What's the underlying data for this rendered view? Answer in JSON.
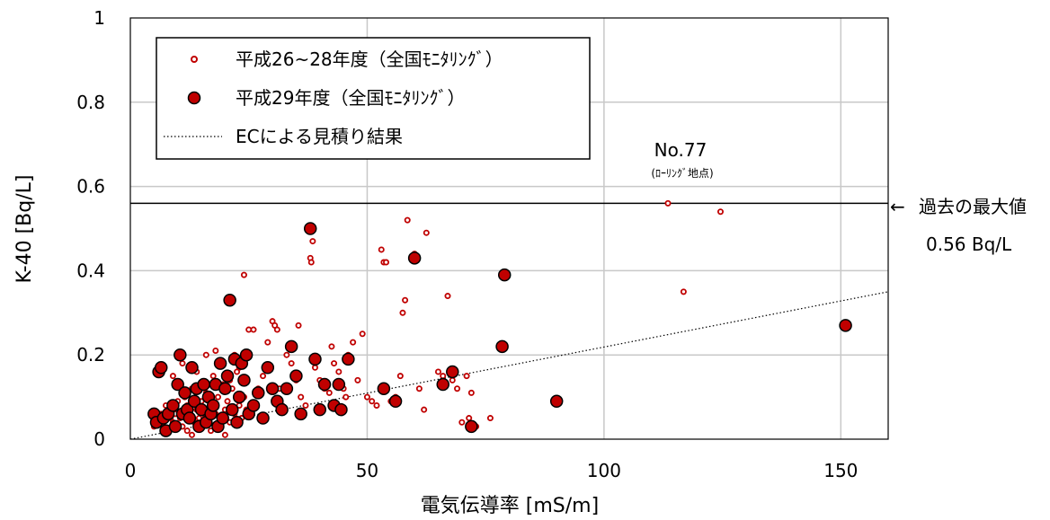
{
  "chart_data": {
    "type": "scatter",
    "xlabel": "電気伝導率 [mS/m]",
    "ylabel": "K-40 [Bq/L]",
    "xlim": [
      0,
      160
    ],
    "ylim": [
      0,
      1
    ],
    "x_ticks": [
      "0",
      "50",
      "100",
      "150"
    ],
    "y_ticks": [
      "0",
      "0.2",
      "0.4",
      "0.6",
      "0.8",
      "1"
    ],
    "grid": true,
    "legend_position": "top-left",
    "colors": {
      "marker_fill": "#c00000",
      "marker_edge_small": "#c00000",
      "marker_edge_large": "#000000",
      "line": "#000000"
    },
    "series": [
      {
        "name": "平成26~28年度（全国ﾓﾆﾀﾘﾝｸﾞ）",
        "marker": "small-open-circle",
        "points": [
          [
            5,
            0.03
          ],
          [
            5.5,
            0.04
          ],
          [
            6,
            0.05
          ],
          [
            6.5,
            0.06
          ],
          [
            7,
            0.03
          ],
          [
            7.5,
            0.08
          ],
          [
            8,
            0.07
          ],
          [
            8.5,
            0.05
          ],
          [
            9,
            0.04
          ],
          [
            9.5,
            0.06
          ],
          [
            10,
            0.09
          ],
          [
            10.5,
            0.05
          ],
          [
            11,
            0.03
          ],
          [
            11.5,
            0.1
          ],
          [
            12,
            0.08
          ],
          [
            12.5,
            0.06
          ],
          [
            13,
            0.12
          ],
          [
            13.5,
            0.04
          ],
          [
            14,
            0.07
          ],
          [
            14.5,
            0.05
          ],
          [
            15,
            0.09
          ],
          [
            15.5,
            0.06
          ],
          [
            16,
            0.11
          ],
          [
            16.5,
            0.04
          ],
          [
            17,
            0.08
          ],
          [
            17.5,
            0.15
          ],
          [
            18,
            0.06
          ],
          [
            18.5,
            0.1
          ],
          [
            19,
            0.05
          ],
          [
            19.5,
            0.13
          ],
          [
            20,
            0.07
          ],
          [
            20.5,
            0.09
          ],
          [
            21,
            0.04
          ],
          [
            21.5,
            0.12
          ],
          [
            22,
            0.06
          ],
          [
            22.5,
            0.16
          ],
          [
            23,
            0.08
          ],
          [
            23.5,
            0.05
          ],
          [
            24,
            0.1
          ],
          [
            24.5,
            0.07
          ],
          [
            8,
            0.02
          ],
          [
            9,
            0.15
          ],
          [
            11,
            0.18
          ],
          [
            12,
            0.02
          ],
          [
            13,
            0.01
          ],
          [
            14,
            0.16
          ],
          [
            16,
            0.2
          ],
          [
            17,
            0.02
          ],
          [
            18,
            0.21
          ],
          [
            19,
            0.18
          ],
          [
            20,
            0.01
          ],
          [
            21,
            0.14
          ],
          [
            22,
            0.2
          ],
          [
            23,
            0.17
          ],
          [
            24,
            0.39
          ],
          [
            25,
            0.26
          ],
          [
            26,
            0.26
          ],
          [
            27,
            0.12
          ],
          [
            28,
            0.15
          ],
          [
            29,
            0.23
          ],
          [
            30,
            0.28
          ],
          [
            30.5,
            0.27
          ],
          [
            31,
            0.26
          ],
          [
            31.5,
            0.12
          ],
          [
            32,
            0.08
          ],
          [
            33,
            0.2
          ],
          [
            34,
            0.18
          ],
          [
            35,
            0.14
          ],
          [
            35.5,
            0.27
          ],
          [
            36,
            0.1
          ],
          [
            37,
            0.08
          ],
          [
            38,
            0.43
          ],
          [
            38.2,
            0.42
          ],
          [
            38.5,
            0.47
          ],
          [
            39,
            0.17
          ],
          [
            40,
            0.14
          ],
          [
            41,
            0.12
          ],
          [
            42,
            0.11
          ],
          [
            42.5,
            0.22
          ],
          [
            43,
            0.18
          ],
          [
            44,
            0.16
          ],
          [
            45,
            0.12
          ],
          [
            45.5,
            0.1
          ],
          [
            46,
            0.2
          ],
          [
            47,
            0.23
          ],
          [
            48,
            0.14
          ],
          [
            49,
            0.25
          ],
          [
            50,
            0.1
          ],
          [
            51,
            0.09
          ],
          [
            52,
            0.08
          ],
          [
            53,
            0.45
          ],
          [
            53.5,
            0.42
          ],
          [
            54,
            0.42
          ],
          [
            55,
            0.09
          ],
          [
            56,
            0.1
          ],
          [
            57,
            0.15
          ],
          [
            57.5,
            0.3
          ],
          [
            58,
            0.33
          ],
          [
            58.5,
            0.52
          ],
          [
            60,
            0.44
          ],
          [
            61,
            0.12
          ],
          [
            62,
            0.07
          ],
          [
            62.5,
            0.49
          ],
          [
            65,
            0.16
          ],
          [
            66,
            0.15
          ],
          [
            67,
            0.34
          ],
          [
            68,
            0.14
          ],
          [
            69,
            0.12
          ],
          [
            70,
            0.04
          ],
          [
            71,
            0.15
          ],
          [
            71.5,
            0.05
          ],
          [
            72,
            0.11
          ],
          [
            73,
            0.03
          ],
          [
            76,
            0.05
          ],
          [
            113.5,
            0.56
          ],
          [
            116.8,
            0.35
          ],
          [
            124.6,
            0.54
          ],
          [
            151.5,
            0.27
          ]
        ]
      },
      {
        "name": "平成29年度（全国ﾓﾆﾀﾘﾝｸﾞ）",
        "marker": "large-filled-circle",
        "points": [
          [
            5,
            0.06
          ],
          [
            5.5,
            0.04
          ],
          [
            6,
            0.16
          ],
          [
            6.5,
            0.17
          ],
          [
            7,
            0.05
          ],
          [
            7.5,
            0.02
          ],
          [
            8,
            0.06
          ],
          [
            9,
            0.08
          ],
          [
            9.5,
            0.03
          ],
          [
            10,
            0.13
          ],
          [
            10.5,
            0.2
          ],
          [
            11,
            0.06
          ],
          [
            11.5,
            0.11
          ],
          [
            12,
            0.07
          ],
          [
            12.5,
            0.05
          ],
          [
            13,
            0.17
          ],
          [
            13.5,
            0.09
          ],
          [
            14,
            0.12
          ],
          [
            14.5,
            0.03
          ],
          [
            15,
            0.07
          ],
          [
            15.5,
            0.13
          ],
          [
            16,
            0.04
          ],
          [
            16.5,
            0.1
          ],
          [
            17,
            0.06
          ],
          [
            17.5,
            0.08
          ],
          [
            18,
            0.13
          ],
          [
            18.5,
            0.03
          ],
          [
            19,
            0.18
          ],
          [
            19.5,
            0.05
          ],
          [
            20,
            0.12
          ],
          [
            20.5,
            0.15
          ],
          [
            21,
            0.33
          ],
          [
            21.5,
            0.07
          ],
          [
            22,
            0.19
          ],
          [
            22.5,
            0.04
          ],
          [
            23,
            0.1
          ],
          [
            23.5,
            0.18
          ],
          [
            24,
            0.14
          ],
          [
            24.5,
            0.2
          ],
          [
            25,
            0.06
          ],
          [
            26,
            0.08
          ],
          [
            27,
            0.11
          ],
          [
            28,
            0.05
          ],
          [
            29,
            0.17
          ],
          [
            30,
            0.12
          ],
          [
            31,
            0.09
          ],
          [
            32,
            0.07
          ],
          [
            33,
            0.12
          ],
          [
            34,
            0.22
          ],
          [
            35,
            0.15
          ],
          [
            36,
            0.06
          ],
          [
            38,
            0.5
          ],
          [
            39,
            0.19
          ],
          [
            40,
            0.07
          ],
          [
            41,
            0.13
          ],
          [
            43,
            0.08
          ],
          [
            44,
            0.13
          ],
          [
            44.5,
            0.07
          ],
          [
            46,
            0.19
          ],
          [
            53.5,
            0.12
          ],
          [
            56,
            0.09
          ],
          [
            60,
            0.43
          ],
          [
            66,
            0.13
          ],
          [
            68,
            0.16
          ],
          [
            72,
            0.03
          ],
          [
            78.5,
            0.22
          ],
          [
            79,
            0.39
          ],
          [
            90,
            0.09
          ],
          [
            151,
            0.27
          ]
        ]
      },
      {
        "name": "ECによる見積り結果",
        "marker": "dotted-line",
        "points": [
          [
            0,
            0
          ],
          [
            160,
            0.35
          ]
        ]
      }
    ],
    "reference_line": {
      "y": 0.56,
      "label": "過去の最大値",
      "value_label": "0.56 Bq/L",
      "arrow": "←"
    },
    "annotations": [
      {
        "text": "No.77",
        "x": 122,
        "y": 0.66
      },
      {
        "text": "(ﾛｰﾘﾝｸﾞ地点)",
        "x": 122,
        "y": 0.62
      }
    ]
  }
}
